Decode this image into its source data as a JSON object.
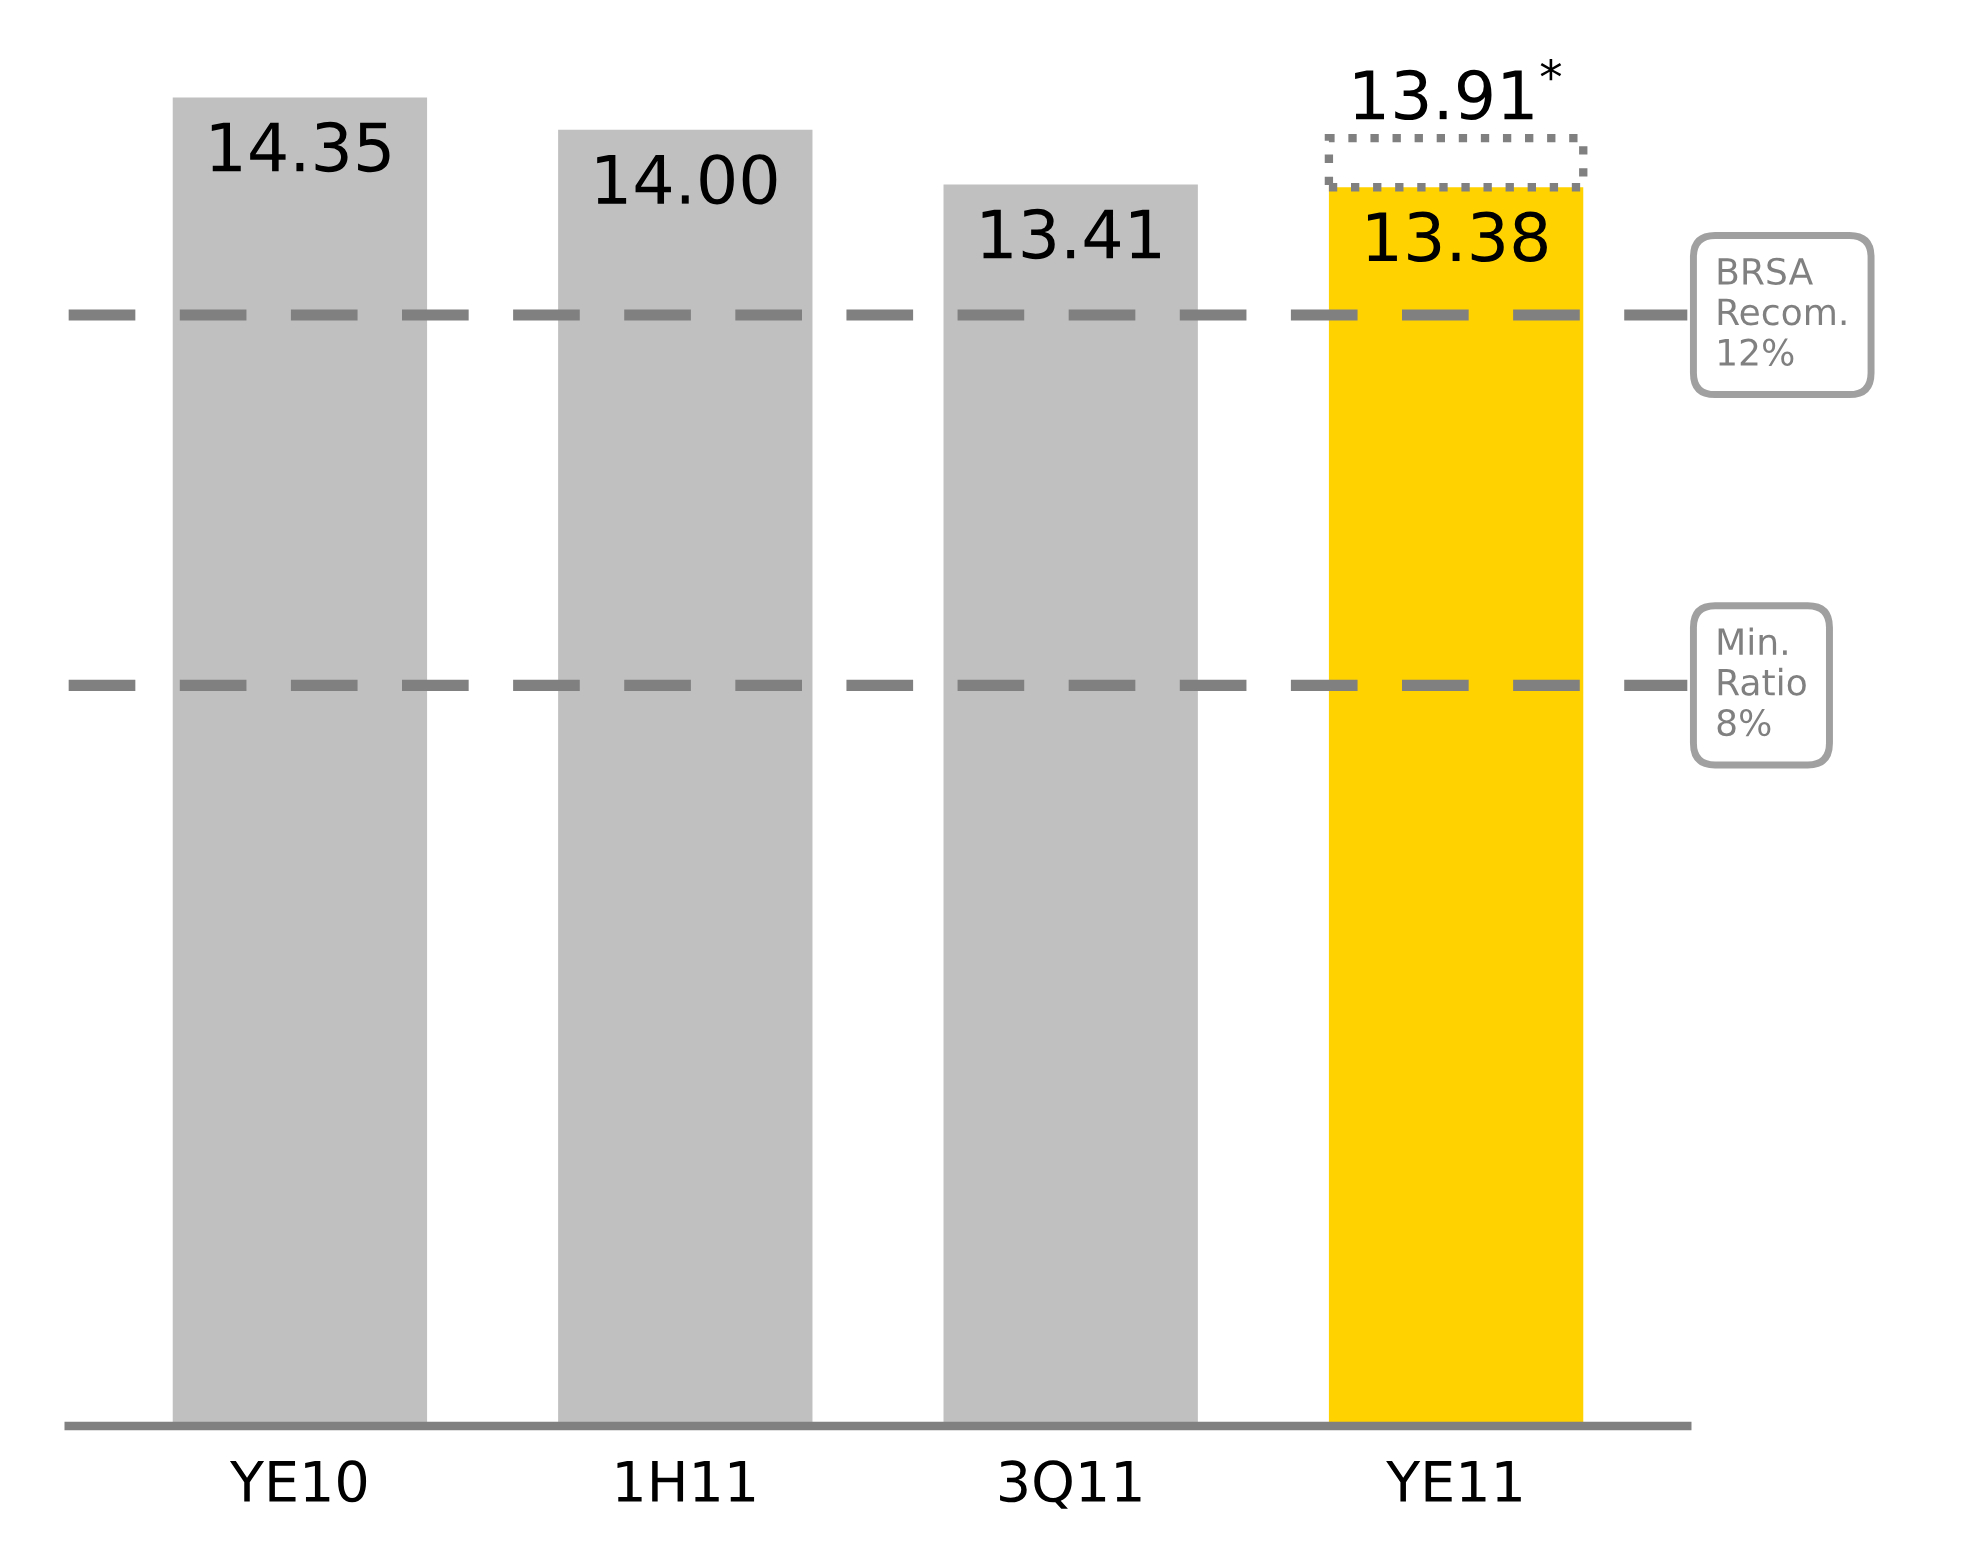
{
  "chart_data": {
    "type": "bar",
    "stacked": true,
    "categories": [
      "YE10",
      "1H11",
      "3Q11",
      "YE11"
    ],
    "series": [
      {
        "color": "#c0c0c0",
        "colors": [
          "#c0c0c0",
          "#c0c0c0",
          "#c0c0c0",
          "#ffd200"
        ],
        "values": [
          14.35,
          14.0,
          13.41,
          13.38
        ],
        "value_labels": [
          "14.35",
          "14.00",
          "13.41",
          "13.38"
        ]
      },
      {
        "color": "#808080",
        "line_style": "dotted",
        "values": [
          null,
          null,
          null,
          0.53
        ]
      }
    ],
    "totals": [
      null,
      null,
      null,
      "13.91$^{*}$"
    ],
    "tick_labels": "x",
    "grid": false,
    "legend": false,
    "ref_lines": [
      {
        "axis": "y",
        "value": 12,
        "label": "BRSA\nRecom.\n12%",
        "color": "#808080",
        "line_style": "dashed"
      },
      {
        "axis": "y",
        "value": 8,
        "label": "Min.\nRatio\n8%",
        "color": "#808080",
        "line_style": "dashed"
      }
    ]
  }
}
